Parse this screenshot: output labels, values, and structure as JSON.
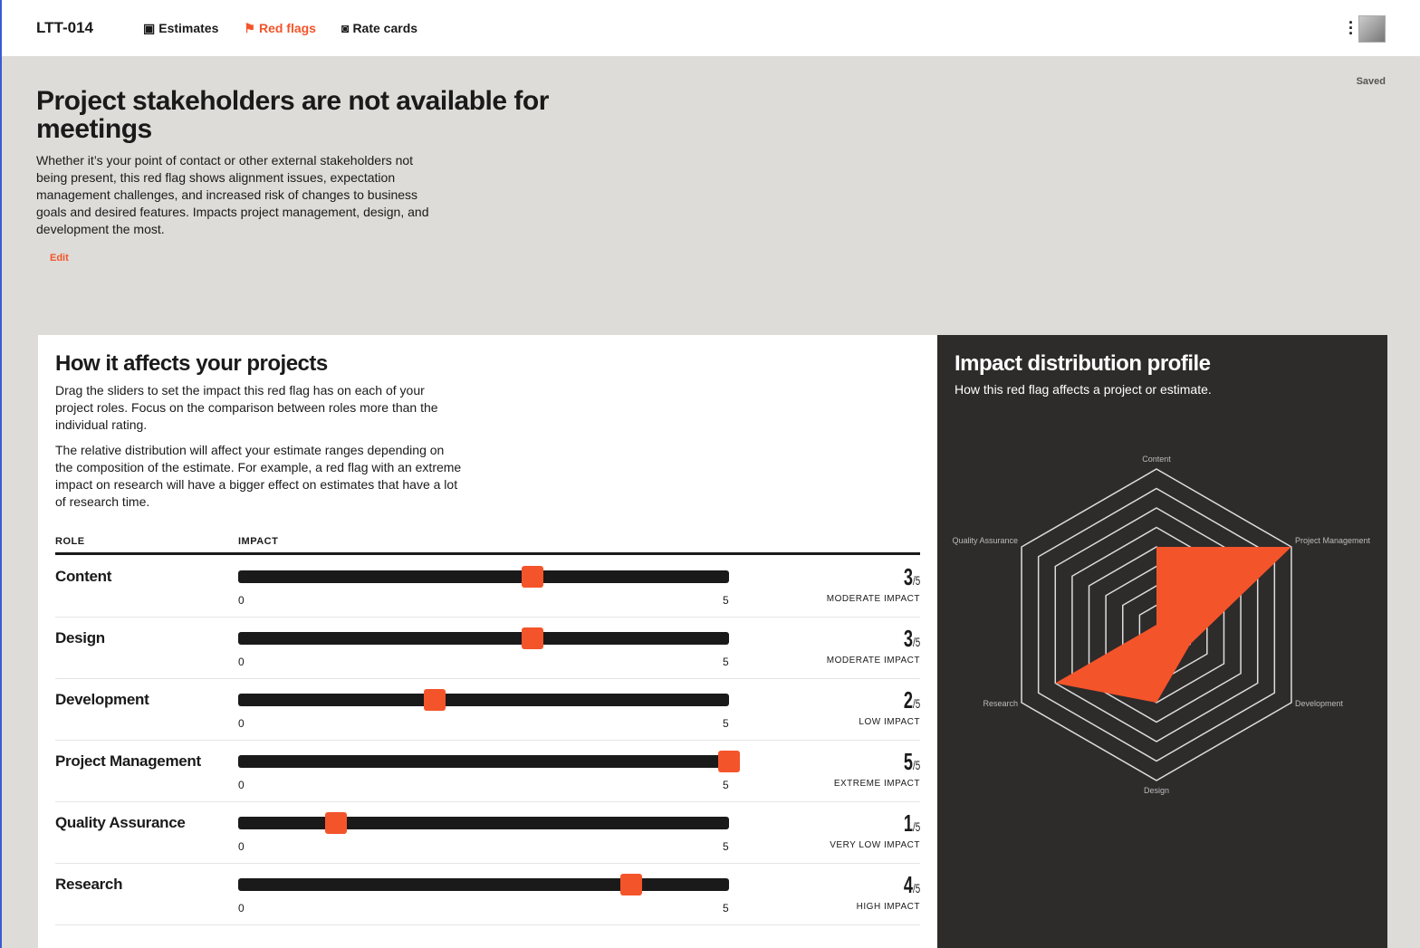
{
  "header": {
    "brand": "LTT-014",
    "nav": [
      {
        "label": "Estimates",
        "icon": "estimate-icon"
      },
      {
        "label": "Red flags",
        "icon": "flag-icon",
        "active": true
      },
      {
        "label": "Rate cards",
        "icon": "rate-card-icon"
      }
    ],
    "menu_icon": "kebab-icon"
  },
  "status": "Saved",
  "title": "Project stakeholders are not available for meetings",
  "description": "Whether it’s your point of contact or other external stakeholders not being present, this red flag shows alignment issues, expectation management challenges, and increased risk of changes to business goals and desired features. Impacts project management, design, and development the most.",
  "edit_label": "Edit",
  "affects": {
    "title": "How it affects your projects",
    "p1": "Drag the sliders to set the impact this red flag has on each of your project roles. Focus on the comparison between roles more than the individual rating.",
    "p2": "The relative distribution will affect your estimate ranges depending on the composition of the estimate. For example, a red flag with an extreme impact on research will have a bigger effect on estimates that have a lot of research time.",
    "col_role": "ROLE",
    "col_impact": "IMPACT",
    "min": "0",
    "max": "5",
    "denom": "/5",
    "roles": [
      {
        "name": "Content",
        "value": 3,
        "level": "MODERATE IMPACT"
      },
      {
        "name": "Design",
        "value": 3,
        "level": "MODERATE IMPACT"
      },
      {
        "name": "Development",
        "value": 2,
        "level": "LOW IMPACT"
      },
      {
        "name": "Project Management",
        "value": 5,
        "level": "EXTREME IMPACT"
      },
      {
        "name": "Quality Assurance",
        "value": 1,
        "level": "VERY LOW IMPACT"
      },
      {
        "name": "Research",
        "value": 4,
        "level": "HIGH IMPACT"
      }
    ]
  },
  "profile": {
    "title": "Impact distribution profile",
    "subtitle": "How this red flag affects a project or estimate."
  },
  "chart_data": {
    "type": "radar",
    "axes": [
      "Content",
      "Project Management",
      "Development",
      "Design",
      "Research",
      "Quality Assurance"
    ],
    "values": [
      3,
      5,
      2,
      3,
      4,
      1
    ],
    "rlim": [
      1,
      5
    ],
    "rings": 8,
    "color": "#f4542a"
  },
  "colors": {
    "accent": "#f4542a",
    "dark": "#2e2b2b"
  }
}
